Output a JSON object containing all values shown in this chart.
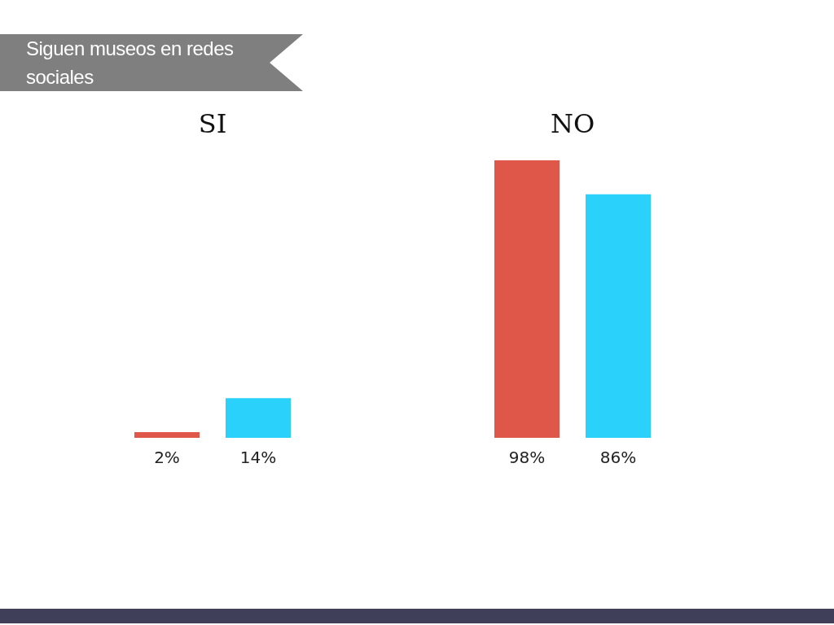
{
  "chart_data": {
    "type": "bar",
    "title": "Siguen museos en redes sociales",
    "categories": [
      "SI",
      "NO"
    ],
    "series": [
      {
        "color": "#df5748",
        "values": [
          2,
          98
        ],
        "value_labels": [
          "2%",
          "98%"
        ]
      },
      {
        "color": "#29d1fb",
        "values": [
          14,
          86
        ],
        "value_labels": [
          "14%",
          "86%"
        ]
      }
    ]
  }
}
